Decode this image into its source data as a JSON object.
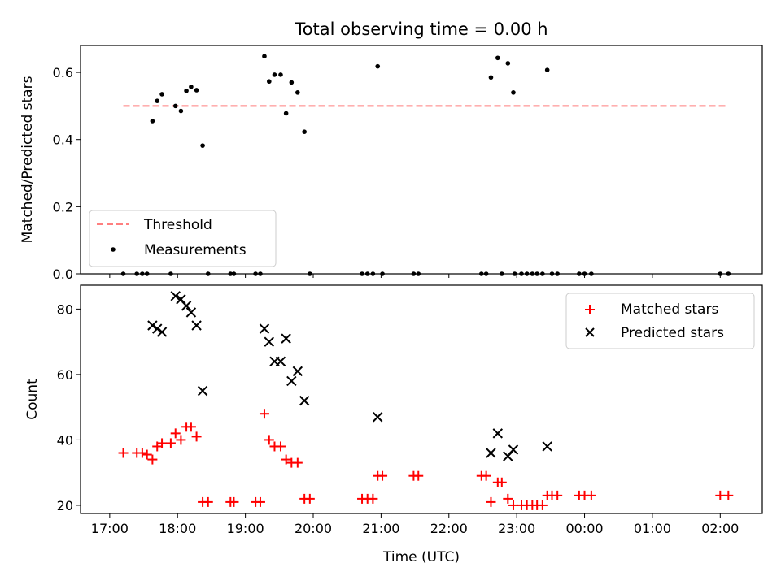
{
  "chart_data": {
    "title": "Total observing time = 0.00 h",
    "x_axis": {
      "label": "Time (UTC)",
      "unit": "hours since 17:00 UTC (values > 7 wrap past midnight)",
      "range": [
        -0.43,
        9.62
      ],
      "ticks": [
        0,
        1,
        2,
        3,
        4,
        5,
        6,
        7,
        8,
        9
      ],
      "tick_labels": [
        "17:00",
        "18:00",
        "19:00",
        "20:00",
        "21:00",
        "22:00",
        "23:00",
        "00:00",
        "01:00",
        "02:00"
      ]
    },
    "panels": [
      {
        "type": "scatter",
        "ylabel": "Matched/Predicted stars",
        "ylim": [
          0,
          0.68
        ],
        "yticks": [
          0,
          0.2,
          0.4,
          0.6
        ],
        "ytick_labels": [
          "0.0",
          "0.2",
          "0.4",
          "0.6"
        ],
        "legend_position": "lower-left",
        "threshold": {
          "name": "Threshold",
          "value": 0.5,
          "x_range": [
            0.2,
            9.1
          ],
          "color": "#ff7f7f"
        },
        "series": [
          {
            "name": "Measurements",
            "marker": "dot",
            "color": "#000000",
            "points": [
              [
                0.2,
                0.0
              ],
              [
                0.4,
                0.0
              ],
              [
                0.48,
                0.0
              ],
              [
                0.55,
                0.0
              ],
              [
                0.63,
                0.455
              ],
              [
                0.7,
                0.515
              ],
              [
                0.77,
                0.535
              ],
              [
                0.9,
                0.0
              ],
              [
                0.97,
                0.5
              ],
              [
                1.05,
                0.485
              ],
              [
                1.13,
                0.545
              ],
              [
                1.2,
                0.557
              ],
              [
                1.28,
                0.547
              ],
              [
                1.37,
                0.382
              ],
              [
                1.45,
                0.0
              ],
              [
                1.78,
                0.0
              ],
              [
                1.83,
                0.0
              ],
              [
                2.15,
                0.0
              ],
              [
                2.22,
                0.0
              ],
              [
                2.28,
                0.648
              ],
              [
                2.35,
                0.573
              ],
              [
                2.43,
                0.593
              ],
              [
                2.52,
                0.593
              ],
              [
                2.6,
                0.478
              ],
              [
                2.68,
                0.57
              ],
              [
                2.77,
                0.54
              ],
              [
                2.87,
                0.423
              ],
              [
                2.95,
                0.0
              ],
              [
                3.72,
                0.0
              ],
              [
                3.8,
                0.0
              ],
              [
                3.88,
                0.0
              ],
              [
                3.95,
                0.618
              ],
              [
                4.02,
                0.0
              ],
              [
                4.48,
                0.0
              ],
              [
                4.55,
                0.0
              ],
              [
                5.48,
                0.0
              ],
              [
                5.55,
                0.0
              ],
              [
                5.62,
                0.585
              ],
              [
                5.72,
                0.643
              ],
              [
                5.78,
                0.0
              ],
              [
                5.87,
                0.627
              ],
              [
                5.95,
                0.54
              ],
              [
                5.97,
                0.0
              ],
              [
                6.07,
                0.0
              ],
              [
                6.15,
                0.0
              ],
              [
                6.23,
                0.0
              ],
              [
                6.3,
                0.0
              ],
              [
                6.38,
                0.0
              ],
              [
                6.45,
                0.607
              ],
              [
                6.52,
                0.0
              ],
              [
                6.6,
                0.0
              ],
              [
                6.92,
                0.0
              ],
              [
                7.0,
                0.0
              ],
              [
                7.1,
                0.0
              ],
              [
                9.0,
                0.0
              ],
              [
                9.12,
                0.0
              ]
            ]
          }
        ]
      },
      {
        "type": "scatter",
        "ylabel": "Count",
        "ylim": [
          17.5,
          87.3
        ],
        "yticks": [
          20,
          40,
          60,
          80
        ],
        "ytick_labels": [
          "20",
          "40",
          "60",
          "80"
        ],
        "legend_position": "upper-right",
        "series": [
          {
            "name": "Matched stars",
            "marker": "plus",
            "color": "#ff0000",
            "points": [
              [
                0.2,
                36
              ],
              [
                0.4,
                36
              ],
              [
                0.48,
                36
              ],
              [
                0.55,
                35.5
              ],
              [
                0.63,
                34
              ],
              [
                0.7,
                38
              ],
              [
                0.77,
                39
              ],
              [
                0.9,
                39
              ],
              [
                0.97,
                42
              ],
              [
                1.05,
                40
              ],
              [
                1.13,
                44
              ],
              [
                1.2,
                44
              ],
              [
                1.28,
                41
              ],
              [
                1.37,
                21
              ],
              [
                1.45,
                21
              ],
              [
                1.78,
                21
              ],
              [
                1.83,
                21
              ],
              [
                2.15,
                21
              ],
              [
                2.22,
                21
              ],
              [
                2.28,
                48
              ],
              [
                2.35,
                40
              ],
              [
                2.43,
                38
              ],
              [
                2.52,
                38
              ],
              [
                2.6,
                34
              ],
              [
                2.68,
                33
              ],
              [
                2.77,
                33
              ],
              [
                2.87,
                22
              ],
              [
                2.95,
                22
              ],
              [
                3.72,
                22
              ],
              [
                3.8,
                22
              ],
              [
                3.88,
                22
              ],
              [
                3.95,
                29
              ],
              [
                4.02,
                29
              ],
              [
                4.48,
                29
              ],
              [
                4.55,
                29
              ],
              [
                5.48,
                29
              ],
              [
                5.55,
                29
              ],
              [
                5.62,
                21
              ],
              [
                5.72,
                27
              ],
              [
                5.78,
                27
              ],
              [
                5.87,
                22
              ],
              [
                5.95,
                20
              ],
              [
                6.07,
                20
              ],
              [
                6.15,
                20
              ],
              [
                6.23,
                20
              ],
              [
                6.3,
                20
              ],
              [
                6.38,
                20
              ],
              [
                6.45,
                23
              ],
              [
                6.52,
                23
              ],
              [
                6.6,
                23
              ],
              [
                6.92,
                23
              ],
              [
                7.0,
                23
              ],
              [
                7.1,
                23
              ],
              [
                9.0,
                23
              ],
              [
                9.12,
                23
              ]
            ]
          },
          {
            "name": "Predicted stars",
            "marker": "x",
            "color": "#000000",
            "points": [
              [
                0.63,
                75
              ],
              [
                0.7,
                74
              ],
              [
                0.77,
                73
              ],
              [
                0.97,
                84
              ],
              [
                1.05,
                83
              ],
              [
                1.13,
                81
              ],
              [
                1.2,
                79
              ],
              [
                1.28,
                75
              ],
              [
                1.37,
                55
              ],
              [
                2.28,
                74
              ],
              [
                2.35,
                70
              ],
              [
                2.43,
                64
              ],
              [
                2.52,
                64
              ],
              [
                2.6,
                71
              ],
              [
                2.68,
                58
              ],
              [
                2.77,
                61
              ],
              [
                2.87,
                52
              ],
              [
                3.95,
                47
              ],
              [
                5.62,
                36
              ],
              [
                5.72,
                42
              ],
              [
                5.87,
                35
              ],
              [
                5.95,
                37
              ],
              [
                6.45,
                38
              ]
            ]
          }
        ]
      }
    ]
  }
}
